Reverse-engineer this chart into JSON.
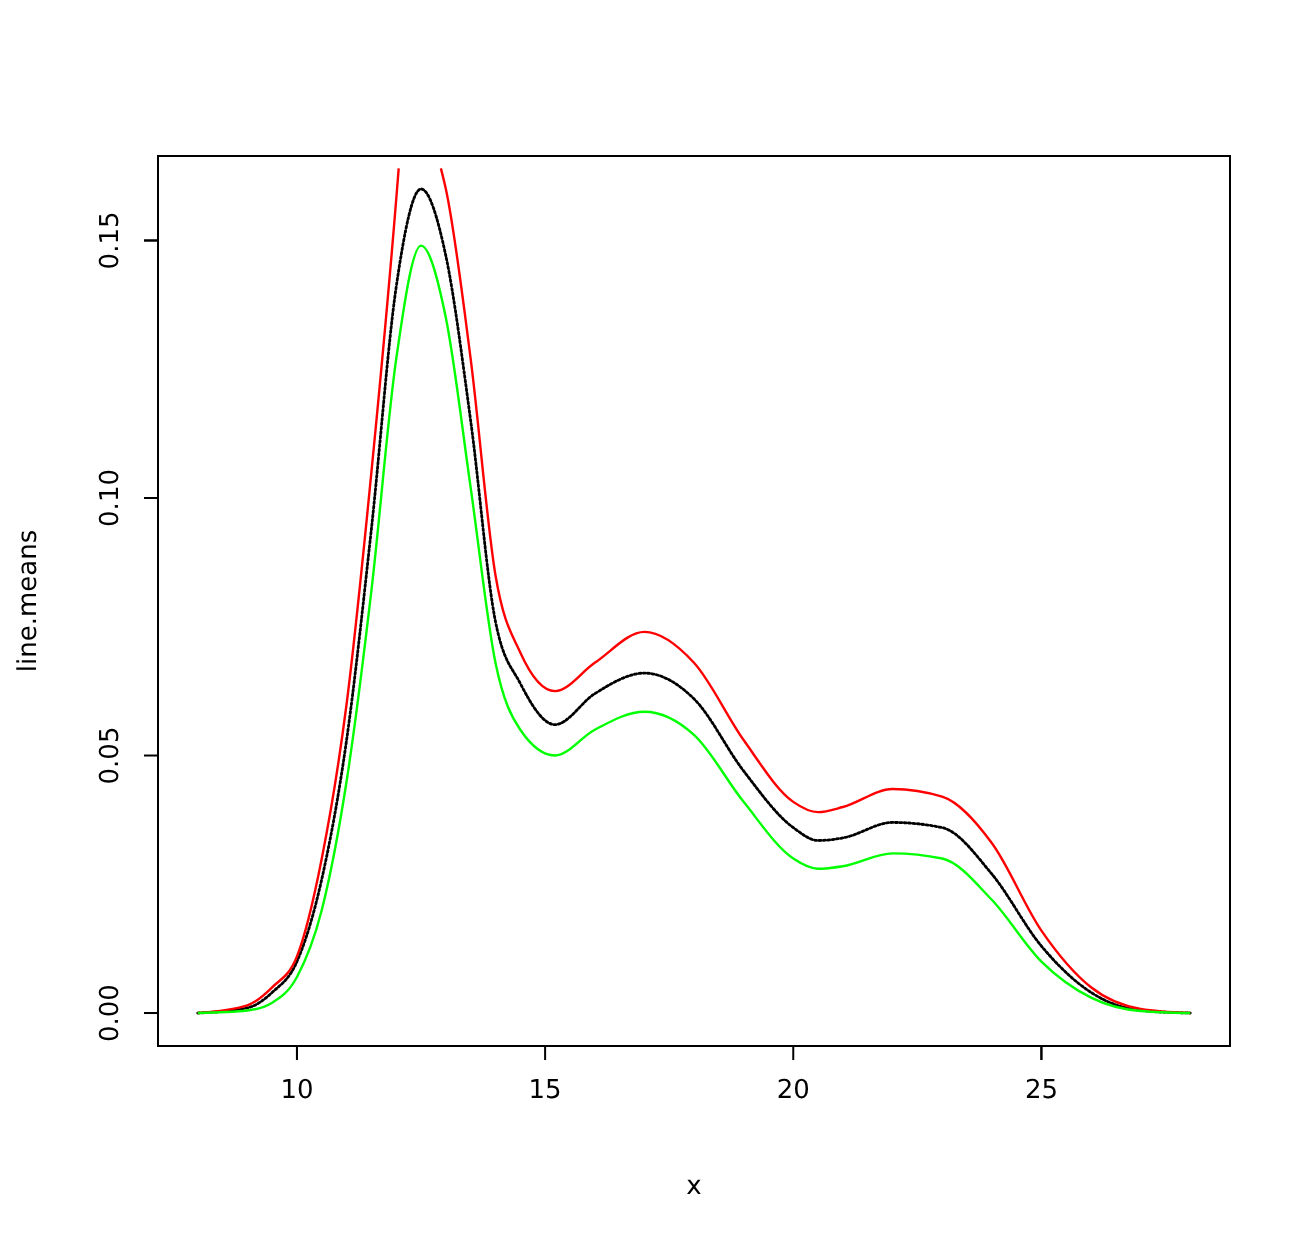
{
  "chart_data": {
    "type": "line",
    "xlabel": "x",
    "ylabel": "line.means",
    "xlim": [
      7.2,
      28.8
    ],
    "ylim": [
      -0.0064,
      0.1664
    ],
    "xticks": [
      10,
      15,
      20,
      25
    ],
    "yticks": [
      {
        "value": 0,
        "label": "0.00"
      },
      {
        "value": 0.05,
        "label": "0.05"
      },
      {
        "value": 0.1,
        "label": "0.10"
      },
      {
        "value": 0.15,
        "label": "0.15"
      }
    ],
    "grid": false,
    "marker": "none",
    "x": [
      8,
      9,
      9.5,
      10,
      10.5,
      11,
      11.5,
      12,
      12.5,
      13,
      13.5,
      14,
      14.5,
      15.2,
      16,
      17,
      18,
      19,
      20,
      20.5,
      21,
      22,
      23,
      24,
      25,
      26,
      27,
      28
    ],
    "series": [
      {
        "color": "#000000",
        "line_style": "dotted",
        "values": [
          0,
          0.001,
          0.004,
          0.01,
          0.026,
          0.053,
          0.094,
          0.141,
          0.16,
          0.147,
          0.115,
          0.076,
          0.064,
          0.056,
          0.062,
          0.066,
          0.061,
          0.047,
          0.036,
          0.0335,
          0.034,
          0.037,
          0.036,
          0.027,
          0.013,
          0.004,
          0.0005,
          0
        ]
      },
      {
        "color": "#ff0000",
        "line_style": "solid",
        "x": [
          8,
          9,
          9.5,
          10,
          10.5,
          11,
          11.5,
          12,
          12.05,
          12.5,
          12.9,
          13,
          13.5,
          14,
          14.5,
          15.2,
          16,
          17,
          18,
          19,
          20,
          20.5,
          21,
          22,
          23,
          24,
          25,
          26,
          27,
          28
        ],
        "values": [
          0,
          0.0015,
          0.005,
          0.011,
          0.03,
          0.06,
          0.105,
          0.158,
          0.164,
          null,
          0.164,
          0.16,
          0.127,
          0.085,
          0.07,
          0.0625,
          0.068,
          0.074,
          0.068,
          0.053,
          0.041,
          0.039,
          0.04,
          0.0435,
          0.042,
          0.033,
          0.016,
          0.005,
          0.0008,
          0
        ]
      },
      {
        "color": "#00ff00",
        "line_style": "solid",
        "values": [
          0,
          0.0005,
          0.002,
          0.007,
          0.02,
          0.045,
          0.082,
          0.127,
          0.149,
          0.135,
          0.102,
          0.068,
          0.055,
          0.05,
          0.055,
          0.0585,
          0.054,
          0.041,
          0.03,
          0.028,
          0.0285,
          0.031,
          0.03,
          0.022,
          0.01,
          0.003,
          0.0004,
          0
        ]
      }
    ]
  }
}
